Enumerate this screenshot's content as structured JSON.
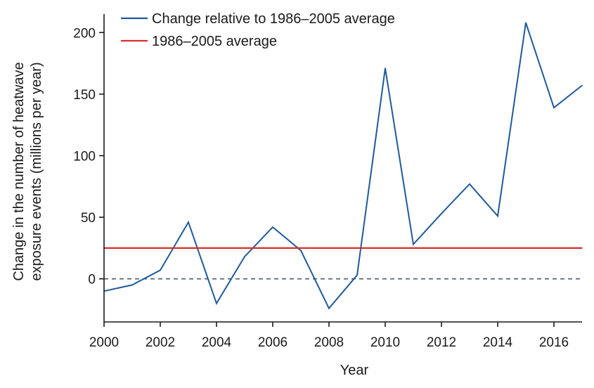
{
  "chart_data": {
    "type": "line",
    "title": "",
    "xlabel": "Year",
    "ylabel_lines": [
      "Change in the number of heatwave",
      "exposure events (millions per year)"
    ],
    "xlim": [
      2000,
      2017
    ],
    "ylim": [
      -35,
      215
    ],
    "x_ticks": [
      2000,
      2002,
      2004,
      2006,
      2008,
      2010,
      2012,
      2014,
      2016
    ],
    "y_ticks": [
      0,
      50,
      100,
      150,
      200
    ],
    "zero_line": {
      "value": 0,
      "style": "dashed",
      "color": "#4a5d6e"
    },
    "legend_position": "top-left",
    "series": [
      {
        "name": "Change relative to 1986–2005 average",
        "color": "#1f5a9a",
        "x": [
          2000,
          2001,
          2002,
          2003,
          2004,
          2005,
          2006,
          2007,
          2008,
          2009,
          2010,
          2011,
          2012,
          2013,
          2014,
          2015,
          2016,
          2017
        ],
        "y": [
          -10,
          -5,
          7,
          46,
          -20,
          18,
          42,
          23,
          -24,
          3,
          171,
          28,
          53,
          77,
          51,
          208,
          139,
          157
        ]
      },
      {
        "name": "1986–2005 average",
        "color": "#d62f2f",
        "x": [
          2000,
          2017
        ],
        "y": [
          25,
          25
        ]
      }
    ]
  }
}
